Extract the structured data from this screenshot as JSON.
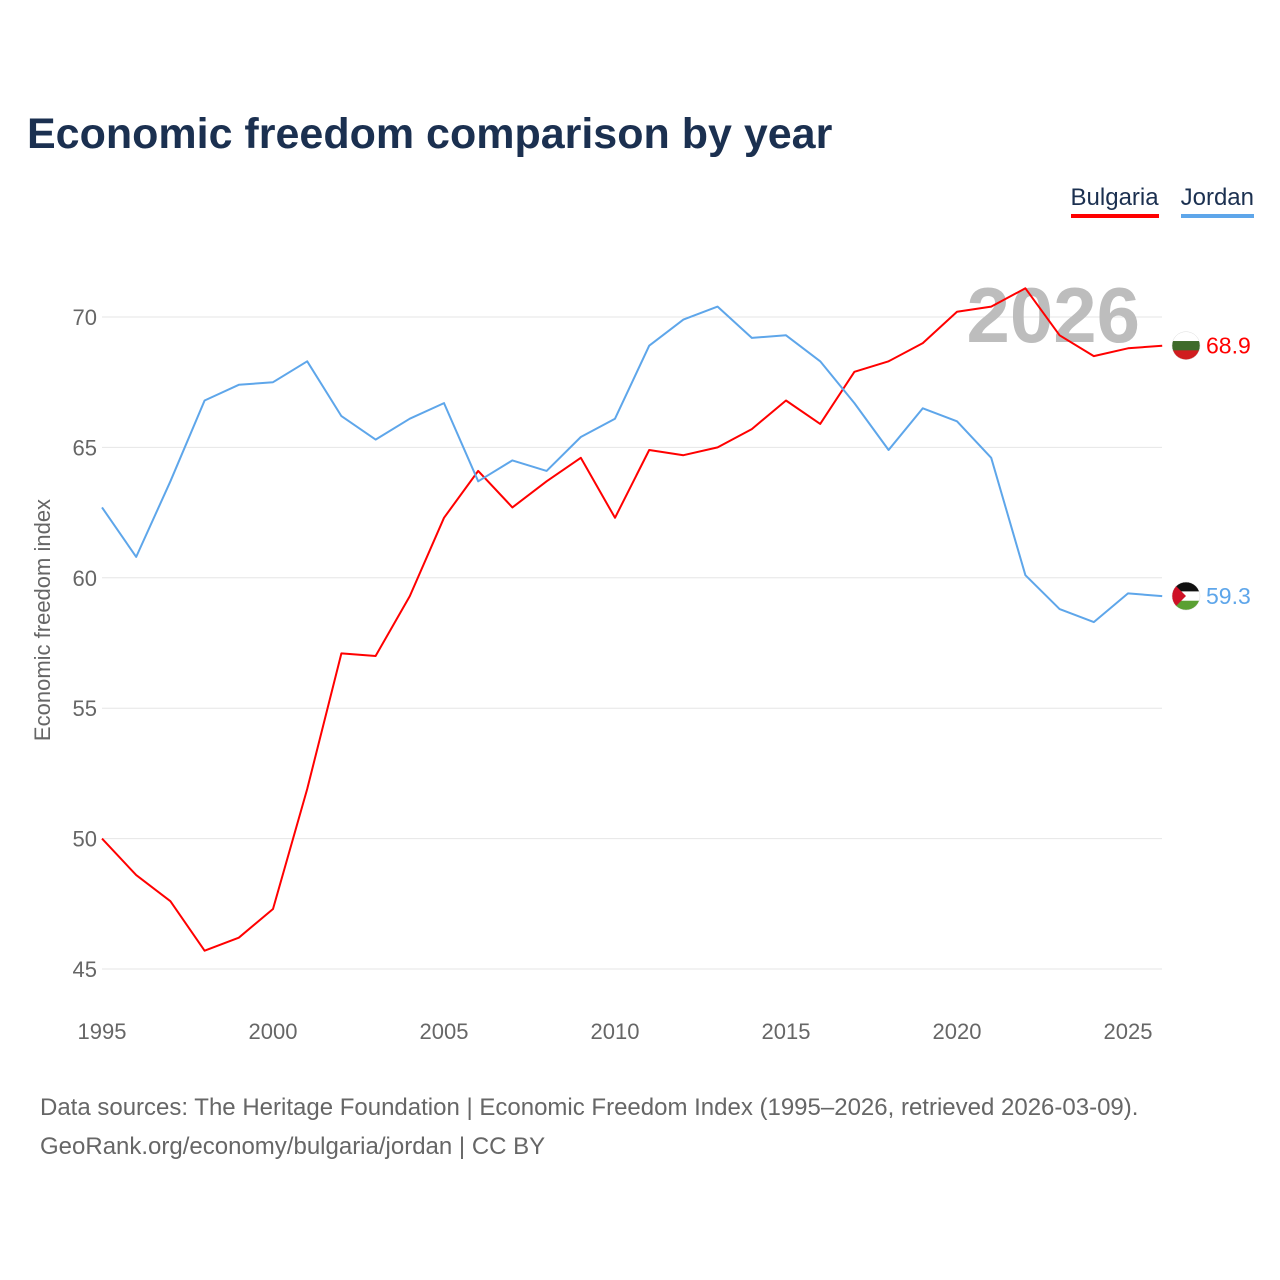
{
  "title": "Economic freedom comparison by year",
  "chart_data": {
    "type": "line",
    "title": "Economic freedom comparison by year",
    "xlabel": "",
    "ylabel": "Economic freedom index",
    "xlim": [
      1995,
      2026
    ],
    "ylim": [
      45,
      72
    ],
    "yticks": [
      45,
      50,
      55,
      60,
      65,
      70
    ],
    "xticks": [
      1995,
      2000,
      2005,
      2010,
      2015,
      2020,
      2025
    ],
    "grid": true,
    "legend_position": "top-right",
    "year_watermark": "2026",
    "x": [
      1995,
      1996,
      1997,
      1998,
      1999,
      2000,
      2001,
      2002,
      2003,
      2004,
      2005,
      2006,
      2007,
      2008,
      2009,
      2010,
      2011,
      2012,
      2013,
      2014,
      2015,
      2016,
      2017,
      2018,
      2019,
      2020,
      2021,
      2022,
      2023,
      2024,
      2025,
      2026
    ],
    "series": [
      {
        "name": "Bulgaria",
        "color": "#ff0000",
        "end_label": "68.9",
        "values": [
          50.0,
          48.6,
          47.6,
          45.7,
          46.2,
          47.3,
          51.9,
          57.1,
          57.0,
          59.3,
          62.3,
          64.1,
          62.7,
          63.7,
          64.6,
          62.3,
          64.9,
          64.7,
          65.0,
          65.7,
          66.8,
          65.9,
          67.9,
          68.3,
          69.0,
          70.2,
          70.4,
          71.1,
          69.3,
          68.5,
          68.8,
          68.9
        ]
      },
      {
        "name": "Jordan",
        "color": "#5ea6ea",
        "end_label": "59.3",
        "values": [
          62.7,
          60.8,
          63.7,
          66.8,
          67.4,
          67.5,
          68.3,
          66.2,
          65.3,
          66.1,
          66.7,
          63.7,
          64.5,
          64.1,
          65.4,
          66.1,
          68.9,
          69.9,
          70.4,
          69.2,
          69.3,
          68.3,
          66.7,
          64.9,
          66.5,
          66.0,
          64.6,
          60.1,
          58.8,
          58.3,
          59.4,
          59.3
        ]
      }
    ]
  },
  "footer": {
    "line1": "Data sources: The Heritage Foundation | Economic Freedom Index (1995–2026, retrieved 2026-03-09).",
    "line2": "GeoRank.org/economy/bulgaria/jordan | CC BY"
  }
}
